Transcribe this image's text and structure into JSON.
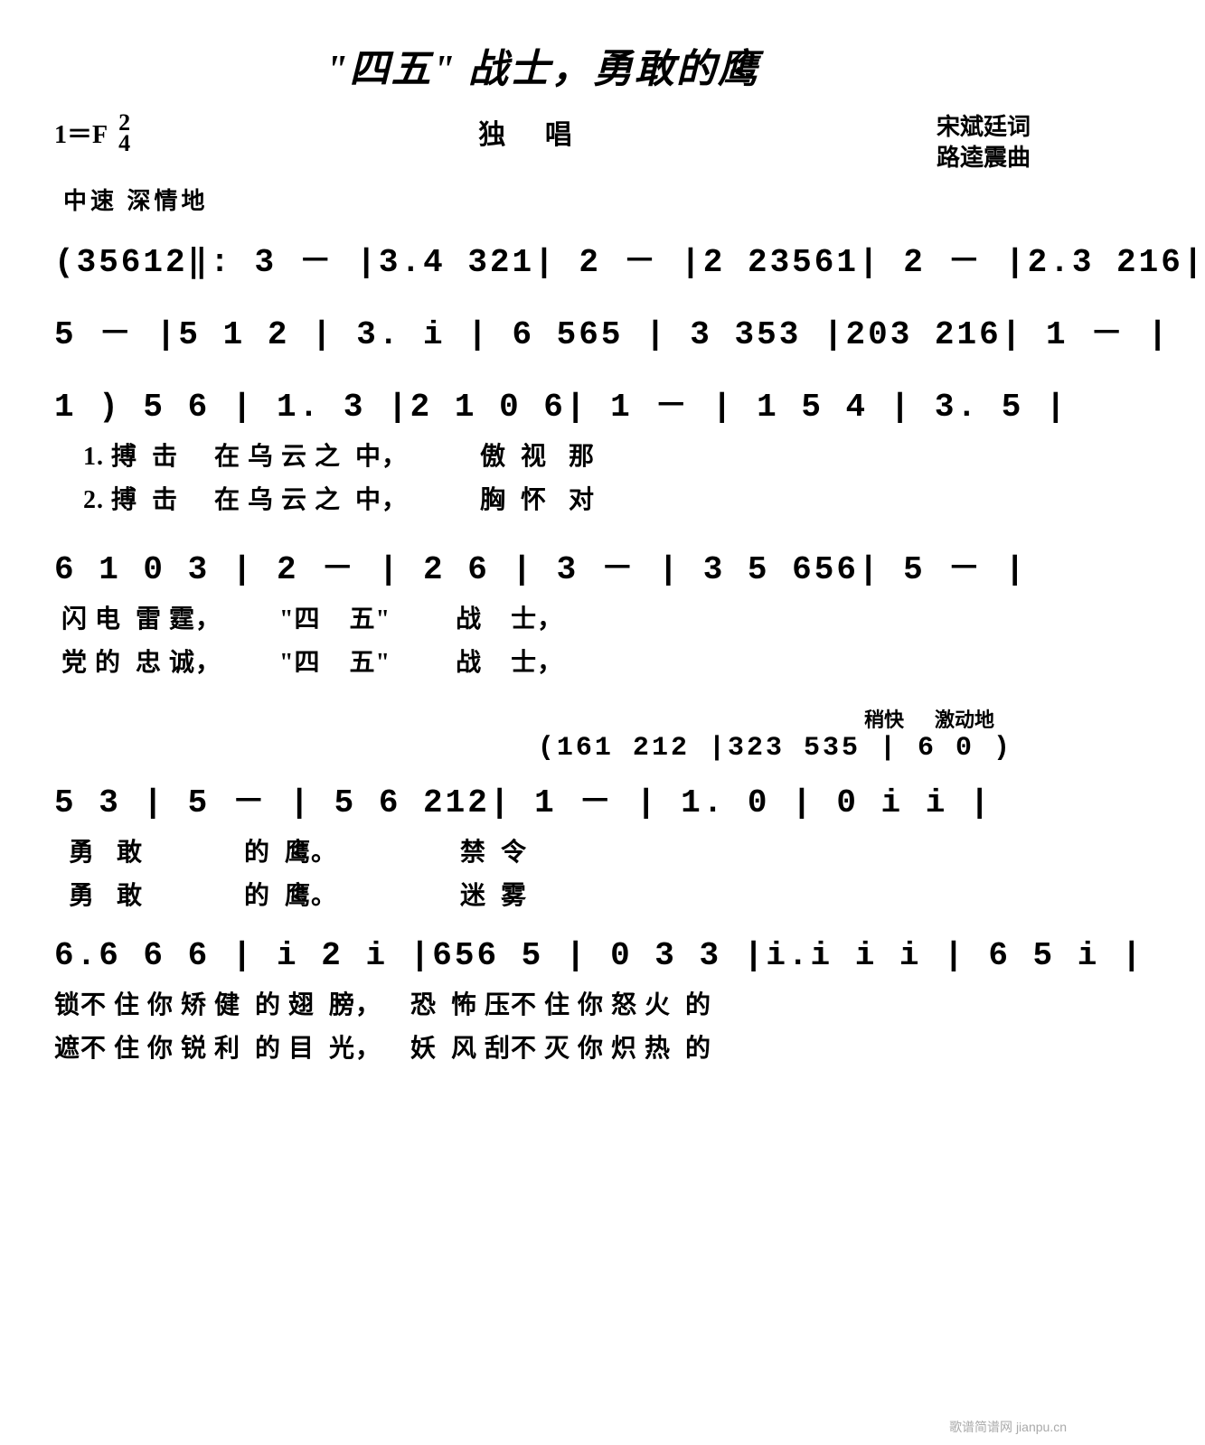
{
  "title": "\"四五\" 战士，勇敢的鹰",
  "key": "1＝F",
  "time_num": "2",
  "time_den": "4",
  "subtitle": "独  唱",
  "lyricist": "宋斌廷词",
  "composer": "路逵震曲",
  "tempo": "中速  深情地",
  "annotation_fast": "稍快",
  "annotation_excited": "激动地",
  "lines": {
    "m1": "(35612‖: 3  －  |3.4 321| 2  －  |2 23561| 2  －  |2.3 216|",
    "m2": " 5  －  |5  1 2 | 3.  i | 6  565 | 3  353 |203 216| 1  －  |",
    "m3": " 1 ) 5 6 | 1.   3 |2 1 0 6|  1  －  | 1   5 4 | 3.   5 |",
    "m4": " 6 1 0 3 | 2   －  | 2   6   | 3  －  | 3 5  656| 5   －  |",
    "m5a": "                              (161 212 |323 535 | 6 0 )",
    "m5": " 5   3  | 5   －  | 5 6  212| 1  －  | 1.  0 | 0  i   i |",
    "m6": "6.6 6 6 | i 2  i |656  5   | 0 3  3 |i.i i i | 6 5  i |"
  },
  "lyrics": {
    "l3a": "    1. 搏  击     在 乌 云 之  中，          傲  视   那",
    "l3b": "    2. 搏  击     在 乌 云 之  中，          胸  怀   对",
    "l4a": " 闪 电  雷 霆，        \"四    五\"         战    士，",
    "l4b": " 党 的  忠 诚，        \"四    五\"         战    士，",
    "l5a": "  勇   敢              的  鹰。                 禁  令",
    "l5b": "  勇   敢              的  鹰。                 迷  雾",
    "l6a": "锁不 住 你 矫 健  的 翅  膀，    恐  怖 压不 住 你 怒 火  的",
    "l6b": "遮不 住 你 锐 利  的 目  光，    妖  风 刮不 灭 你 炽 热  的"
  },
  "watermark": "歌谱简谱网 jianpu.cn",
  "colors": {
    "text": "#000000",
    "background": "#ffffff",
    "watermark": "#aaaaaa"
  }
}
